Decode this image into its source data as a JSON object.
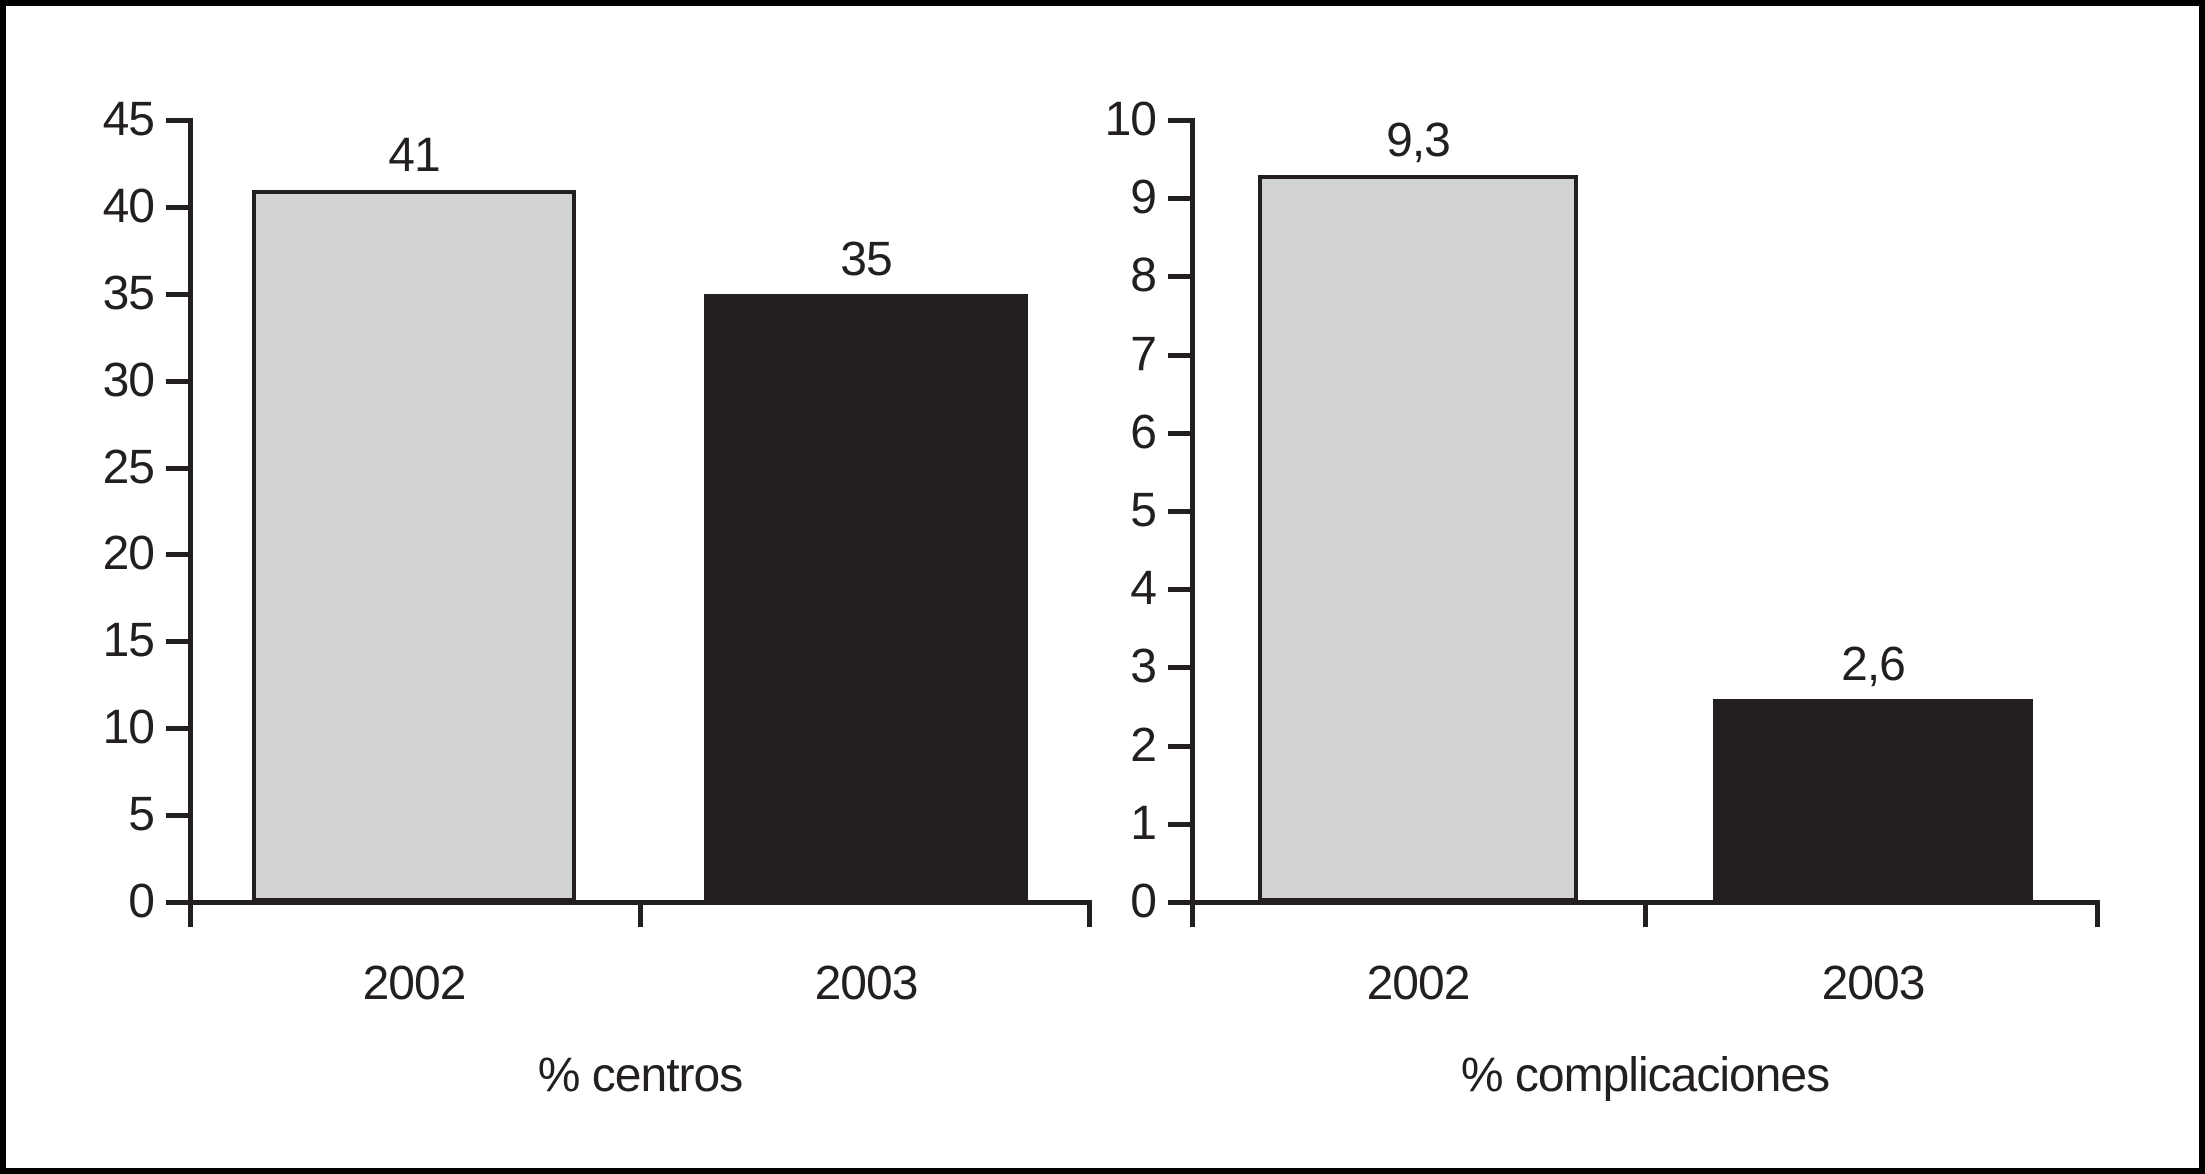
{
  "figure": {
    "background": "#ffffff",
    "border_color": "#000000",
    "axis_color": "#231f20",
    "text_color": "#231f20",
    "gray_bar_color": "#d0d2d3",
    "black_bar_color": "#231f20"
  },
  "chart_data": [
    {
      "type": "bar",
      "title": "",
      "xlabel": "% centros",
      "ylabel": "",
      "categories": [
        "2002",
        "2003"
      ],
      "values": [
        41,
        35
      ],
      "value_labels": [
        "41",
        "35"
      ],
      "bar_colors": [
        "#d0d2d3",
        "#231f20"
      ],
      "bar_border_color": "#231f20",
      "ylim": [
        0,
        45
      ],
      "yticks": [
        0,
        5,
        10,
        15,
        20,
        25,
        30,
        35,
        40,
        45
      ],
      "grid": false,
      "legend": false
    },
    {
      "type": "bar",
      "title": "",
      "xlabel": "% complicaciones",
      "ylabel": "",
      "categories": [
        "2002",
        "2003"
      ],
      "values": [
        9.3,
        2.6
      ],
      "value_labels": [
        "9,3",
        "2,6"
      ],
      "bar_colors": [
        "#d0d2d3",
        "#231f20"
      ],
      "bar_border_color": "#231f20",
      "ylim": [
        0,
        10
      ],
      "yticks": [
        0,
        1,
        2,
        3,
        4,
        5,
        6,
        7,
        8,
        9,
        10
      ],
      "grid": false,
      "legend": false
    }
  ]
}
